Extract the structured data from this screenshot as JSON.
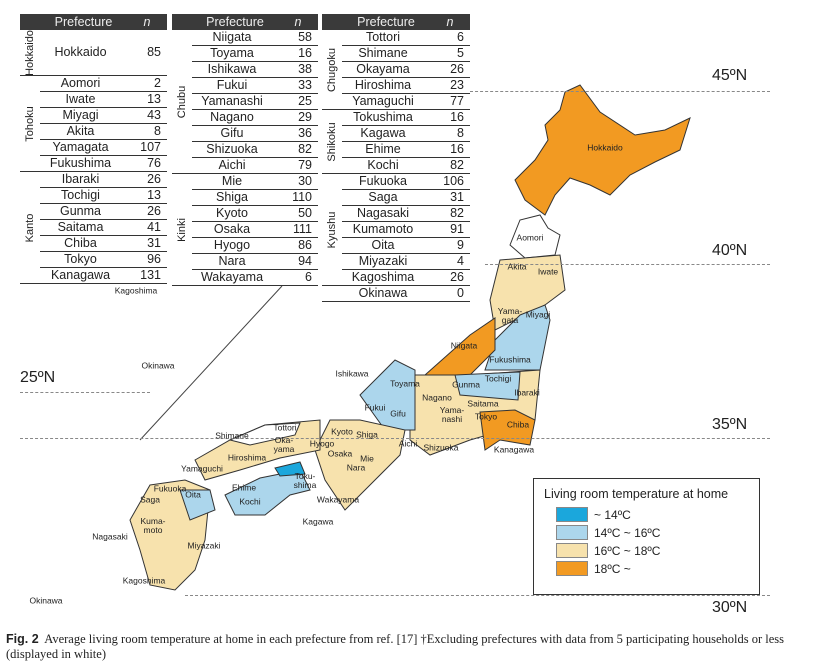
{
  "table": {
    "header_prefecture": "Prefecture",
    "header_n": "n",
    "columns": [
      [
        {
          "region": "Hokkaido",
          "tall": true,
          "rows": [
            [
              "Hokkaido",
              "85"
            ]
          ]
        },
        {
          "region": "Tohoku",
          "rows": [
            [
              "Aomori",
              "2"
            ],
            [
              "Iwate",
              "13"
            ],
            [
              "Miyagi",
              "43"
            ],
            [
              "Akita",
              "8"
            ],
            [
              "Yamagata",
              "107"
            ],
            [
              "Fukushima",
              "76"
            ]
          ]
        },
        {
          "region": "Kanto",
          "rows": [
            [
              "Ibaraki",
              "26"
            ],
            [
              "Tochigi",
              "13"
            ],
            [
              "Gunma",
              "26"
            ],
            [
              "Saitama",
              "41"
            ],
            [
              "Chiba",
              "31"
            ],
            [
              "Tokyo",
              "96"
            ],
            [
              "Kanagawa",
              "131"
            ]
          ]
        }
      ],
      [
        {
          "region": "Chubu",
          "rows": [
            [
              "Niigata",
              "58"
            ],
            [
              "Toyama",
              "16"
            ],
            [
              "Ishikawa",
              "38"
            ],
            [
              "Fukui",
              "33"
            ],
            [
              "Yamanashi",
              "25"
            ],
            [
              "Nagano",
              "29"
            ],
            [
              "Gifu",
              "36"
            ],
            [
              "Shizuoka",
              "82"
            ],
            [
              "Aichi",
              "79"
            ]
          ]
        },
        {
          "region": "Kinki",
          "rows": [
            [
              "Mie",
              "30"
            ],
            [
              "Shiga",
              "110"
            ],
            [
              "Kyoto",
              "50"
            ],
            [
              "Osaka",
              "111"
            ],
            [
              "Hyogo",
              "86"
            ],
            [
              "Nara",
              "94"
            ],
            [
              "Wakayama",
              "6"
            ]
          ]
        }
      ],
      [
        {
          "region": "Chugoku",
          "rows": [
            [
              "Tottori",
              "6"
            ],
            [
              "Shimane",
              "5"
            ],
            [
              "Okayama",
              "26"
            ],
            [
              "Hiroshima",
              "23"
            ],
            [
              "Yamaguchi",
              "77"
            ]
          ]
        },
        {
          "region": "Shikoku",
          "rows": [
            [
              "Tokushima",
              "16"
            ],
            [
              "Kagawa",
              "8"
            ],
            [
              "Ehime",
              "16"
            ],
            [
              "Kochi",
              "82"
            ]
          ]
        },
        {
          "region": "Kyushu",
          "rows": [
            [
              "Fukuoka",
              "106"
            ],
            [
              "Saga",
              "31"
            ],
            [
              "Nagasaki",
              "82"
            ],
            [
              "Kumamoto",
              "91"
            ],
            [
              "Oita",
              "9"
            ],
            [
              "Miyazaki",
              "4"
            ],
            [
              "Kagoshima",
              "26"
            ]
          ]
        },
        {
          "region": "",
          "rows": [
            [
              "Okinawa",
              "0"
            ]
          ]
        }
      ]
    ]
  },
  "map": {
    "latitudes": {
      "n45": "45ºN",
      "n40": "40ºN",
      "n35": "35ºN",
      "n30": "30ºN",
      "n25": "25ºN"
    },
    "labels": {
      "hokkaido": "Hokkaido",
      "aomori": "Aomori",
      "akita": "Akita",
      "iwate": "Iwate",
      "yamagata": "Yama-\ngata",
      "miyagi": "Miyagi",
      "niigata": "Niigata",
      "fukushima": "Fukushima",
      "ishikawa": "Ishikawa",
      "toyama": "Toyama",
      "gunma": "Gunma",
      "tochigi": "Tochigi",
      "ibaraki": "Ibaraki",
      "nagano": "Nagano",
      "fukui": "Fukui",
      "gifu": "Gifu",
      "saitama": "Saitama",
      "yamanashi": "Yama-\nnashi",
      "tokyo": "Tokyo",
      "chiba": "Chiba",
      "kanagawa": "Kanagawa",
      "shiga": "Shiga",
      "kyoto": "Kyoto",
      "tottori": "Tottori",
      "shimane": "Shimane",
      "okayama": "Oka-\nyama",
      "hyogo": "Hyogo",
      "osaka": "Osaka",
      "aichi": "Aichi",
      "shizuoka": "Shizuoka",
      "mie": "Mie",
      "nara": "Nara",
      "hiroshima": "Hiroshima",
      "yamaguchi": "Yamaguchi",
      "ehime": "Ehime",
      "kochi": "Kochi",
      "tokushima": "Toku-\nshima",
      "kagawa": "Kagawa",
      "wakayama": "Wakayama",
      "fukuoka": "Fukuoka",
      "saga": "Saga",
      "oita": "Oita",
      "kumamoto": "Kuma-\nmoto",
      "nagasaki": "Nagasaki",
      "miyazaki": "Miyazaki",
      "kagoshima": "Kagoshima",
      "okinawa_inset": "Okinawa",
      "kagoshima_arrow": "Kagoshima",
      "okinawa_arrow": "Okinawa"
    }
  },
  "legend": {
    "title": "Living room temperature at home",
    "items": [
      {
        "label": "~ 14ºC",
        "color": "#1ba7dc"
      },
      {
        "label": "14ºC ~ 16ºC",
        "color": "#acd6ec"
      },
      {
        "label": "16ºC ~ 18ºC",
        "color": "#f7e2ad"
      },
      {
        "label": "18ºC ~",
        "color": "#f29a22"
      }
    ]
  },
  "caption": {
    "label": "Fig. 2",
    "text": "Average living room temperature at home in each prefecture from ref. [17] †Excluding prefectures with data from 5 participating households or less (displayed in white)"
  }
}
